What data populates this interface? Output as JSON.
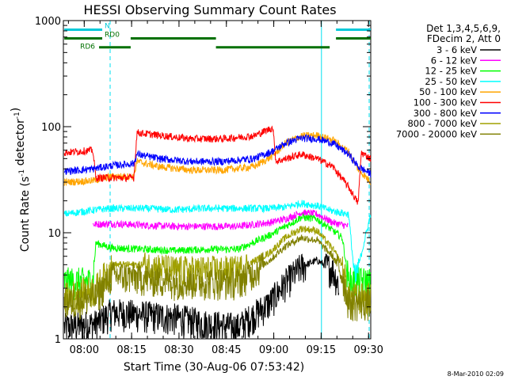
{
  "chart_data": {
    "type": "line",
    "title": "HESSI Observing Summary Count Rates",
    "xlabel": "Start Time (30-Aug-06 07:53:42)",
    "ylabel": "Count Rate (s⁻¹ detector⁻¹)",
    "ylabel_parts": {
      "pre": "Count Rate (s",
      "exp1": "-1",
      "mid": " detector",
      "exp2": "-1",
      "post": ")"
    },
    "yscale": "log",
    "ylim": [
      1,
      1000
    ],
    "xlim_minutes": [
      -0.3,
      97.0
    ],
    "x_ticks": [
      {
        "label": "08:00",
        "m": 6.3
      },
      {
        "label": "08:15",
        "m": 21.3
      },
      {
        "label": "08:30",
        "m": 36.3
      },
      {
        "label": "08:45",
        "m": 51.3
      },
      {
        "label": "09:00",
        "m": 66.3
      },
      {
        "label": "09:15",
        "m": 81.3
      },
      {
        "label": "09:30",
        "m": 96.3
      }
    ],
    "y_ticks": [
      {
        "label": "1",
        "v": 1
      },
      {
        "label": "10",
        "v": 10
      },
      {
        "label": "100",
        "v": 100
      },
      {
        "label": "1000",
        "v": 1000
      }
    ],
    "legend_header": [
      "Det 1,3,4,5,6,9,",
      "FDecim 2, Att 0"
    ],
    "series": [
      {
        "name": "3 - 6 keV",
        "color": "#000000",
        "points": [
          [
            0,
            1.3
          ],
          [
            10,
            1.4
          ],
          [
            15,
            1.8
          ],
          [
            25,
            1.7
          ],
          [
            35,
            1.6
          ],
          [
            45,
            1.4
          ],
          [
            55,
            1.3
          ],
          [
            65,
            2.2
          ],
          [
            70,
            3.4
          ],
          [
            75,
            4.8
          ],
          [
            80,
            5.5
          ],
          [
            85,
            4.5
          ],
          [
            87,
            3.2
          ]
        ]
      },
      {
        "name": "6 - 12 keV",
        "color": "#ff00ff",
        "points": [
          [
            9,
            12
          ],
          [
            15,
            12.2
          ],
          [
            25,
            11.8
          ],
          [
            35,
            11.5
          ],
          [
            45,
            11.5
          ],
          [
            55,
            11.5
          ],
          [
            65,
            12.5
          ],
          [
            70,
            13.5
          ],
          [
            75,
            15.5
          ],
          [
            80,
            15
          ],
          [
            85,
            12.5
          ],
          [
            90,
            11.5
          ]
        ]
      },
      {
        "name": "12 - 25 keV",
        "color": "#00ff00",
        "points": [
          [
            0,
            3.5
          ],
          [
            9,
            3.5
          ],
          [
            10,
            8
          ],
          [
            15,
            7.2
          ],
          [
            25,
            7
          ],
          [
            35,
            6.8
          ],
          [
            45,
            7
          ],
          [
            55,
            7
          ],
          [
            65,
            9.5
          ],
          [
            70,
            11.5
          ],
          [
            75,
            14
          ],
          [
            80,
            13.5
          ],
          [
            85,
            10.5
          ],
          [
            88,
            9
          ],
          [
            90,
            3.5
          ],
          [
            97,
            3.5
          ]
        ]
      },
      {
        "name": "25 - 50 keV",
        "color": "#00ffff",
        "points": [
          [
            0,
            15
          ],
          [
            10,
            16.5
          ],
          [
            15,
            17
          ],
          [
            25,
            17
          ],
          [
            35,
            16.5
          ],
          [
            45,
            17
          ],
          [
            55,
            17
          ],
          [
            65,
            17
          ],
          [
            70,
            17.5
          ],
          [
            75,
            19
          ],
          [
            80,
            18
          ],
          [
            85,
            16
          ],
          [
            90,
            15
          ],
          [
            92,
            3.5
          ],
          [
            97,
            15
          ]
        ]
      },
      {
        "name": "50 - 100 keV",
        "color": "#ffa500",
        "points": [
          [
            0,
            30
          ],
          [
            9,
            31
          ],
          [
            15,
            34
          ],
          [
            22,
            34
          ],
          [
            23,
            47
          ],
          [
            30,
            42
          ],
          [
            40,
            39
          ],
          [
            50,
            39
          ],
          [
            60,
            42
          ],
          [
            66,
            53
          ],
          [
            70,
            70
          ],
          [
            75,
            82
          ],
          [
            80,
            83
          ],
          [
            85,
            75
          ],
          [
            90,
            58
          ],
          [
            93,
            40
          ],
          [
            97,
            30
          ]
        ]
      },
      {
        "name": "100 - 300 keV",
        "color": "#ff0000",
        "points": [
          [
            0,
            57
          ],
          [
            9,
            60
          ],
          [
            10,
            33
          ],
          [
            15,
            33
          ],
          [
            22,
            33
          ],
          [
            23,
            88
          ],
          [
            30,
            83
          ],
          [
            40,
            77
          ],
          [
            50,
            77
          ],
          [
            60,
            82
          ],
          [
            66,
            98
          ],
          [
            67,
            47
          ],
          [
            75,
            55
          ],
          [
            80,
            50
          ],
          [
            85,
            42
          ],
          [
            90,
            27
          ],
          [
            93,
            19
          ],
          [
            94,
            57
          ],
          [
            97,
            50
          ]
        ]
      },
      {
        "name": "300 - 800 keV",
        "color": "#0000ff",
        "points": [
          [
            0,
            38
          ],
          [
            9,
            40
          ],
          [
            15,
            43
          ],
          [
            22,
            45
          ],
          [
            23,
            55
          ],
          [
            30,
            50
          ],
          [
            40,
            47
          ],
          [
            50,
            47
          ],
          [
            60,
            50
          ],
          [
            66,
            59
          ],
          [
            70,
            70
          ],
          [
            75,
            78
          ],
          [
            80,
            77
          ],
          [
            85,
            70
          ],
          [
            90,
            55
          ],
          [
            93,
            42
          ],
          [
            97,
            36
          ]
        ]
      },
      {
        "name": "800 - 7000 keV",
        "color": "#a0a000",
        "points": [
          [
            0,
            2.5
          ],
          [
            10,
            3
          ],
          [
            15,
            5
          ],
          [
            25,
            5
          ],
          [
            35,
            4.5
          ],
          [
            45,
            4.5
          ],
          [
            55,
            4.5
          ],
          [
            65,
            6.5
          ],
          [
            70,
            9
          ],
          [
            75,
            11
          ],
          [
            80,
            10.5
          ],
          [
            85,
            7
          ],
          [
            88,
            5
          ],
          [
            90,
            2.5
          ],
          [
            97,
            2.5
          ]
        ]
      },
      {
        "name": "7000 - 20000 keV",
        "color": "#808000",
        "points": [
          [
            0,
            2.2
          ],
          [
            10,
            2.5
          ],
          [
            15,
            4
          ],
          [
            25,
            3.8
          ],
          [
            35,
            3.5
          ],
          [
            45,
            3.5
          ],
          [
            55,
            3.5
          ],
          [
            65,
            5.5
          ],
          [
            70,
            7.5
          ],
          [
            75,
            9
          ],
          [
            80,
            8.5
          ],
          [
            85,
            6
          ],
          [
            88,
            4
          ],
          [
            90,
            2.2
          ],
          [
            97,
            2.2
          ]
        ]
      }
    ],
    "annotations": [
      {
        "label": "N",
        "color": "#00c8d8",
        "segments": [
          [
            0,
            12
          ],
          [
            86,
            97
          ]
        ],
        "level": 820
      },
      {
        "label": "RD0",
        "color": "#007000",
        "segments": [
          [
            0,
            12
          ],
          [
            21,
            48
          ],
          [
            86,
            97
          ]
        ],
        "level": 680
      },
      {
        "label": "RD6",
        "color": "#007000",
        "segments": [
          [
            11,
            21
          ],
          [
            48,
            84
          ]
        ],
        "level": 560
      }
    ],
    "vertical_lines": [
      {
        "m": -0.3,
        "style": "solid"
      },
      {
        "m": 14.5,
        "style": "dashed"
      },
      {
        "m": 81.4,
        "style": "solid"
      },
      {
        "m": 96.5,
        "style": "dashed"
      }
    ],
    "footer_date": "8-Mar-2010 02:09"
  }
}
